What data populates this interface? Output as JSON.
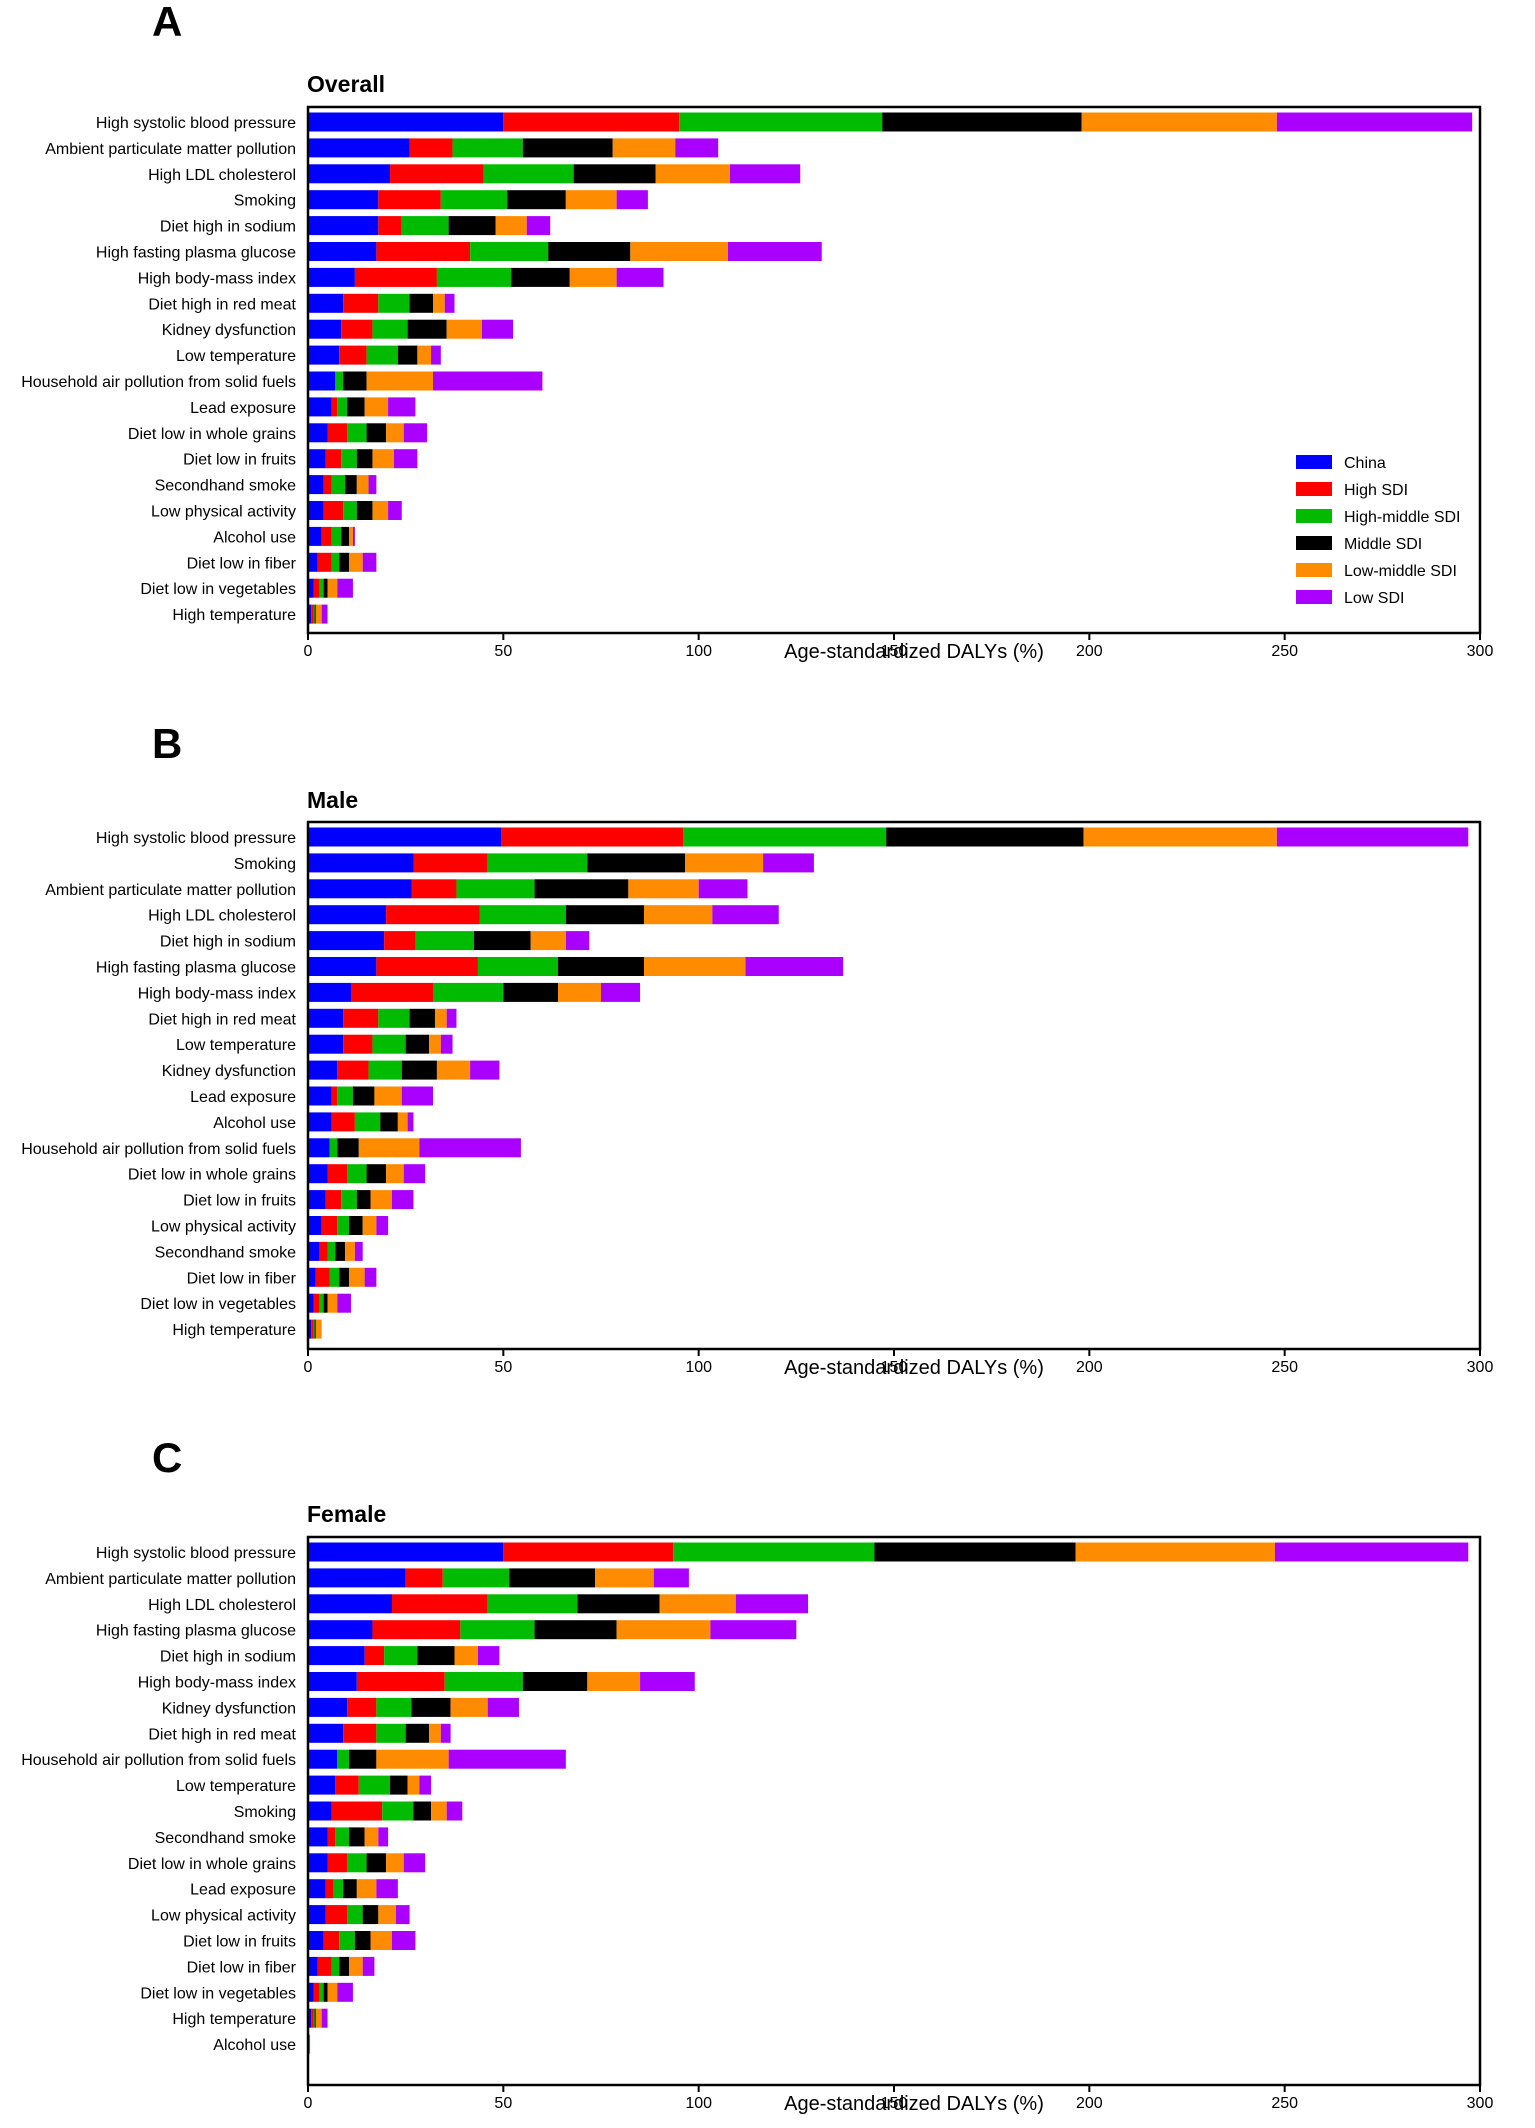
{
  "colors": {
    "China": "#0000ff",
    "High SDI": "#ff0000",
    "High-middle SDI": "#00bb00",
    "Middle SDI": "#000000",
    "Low-middle SDI": "#ff8c00",
    "Low SDI": "#aa00ff"
  },
  "legend": [
    "China",
    "High SDI",
    "High-middle SDI",
    "Middle SDI",
    "Low-middle SDI",
    "Low SDI"
  ],
  "chart_data": [
    {
      "type": "bar",
      "orientation": "horizontal",
      "stacked": true,
      "panel_letter": "A",
      "title": "Overall",
      "xlabel": "Age-standardized DALYs (%)",
      "xlim": [
        0,
        300
      ],
      "xticks": [
        0,
        50,
        100,
        150,
        200,
        250,
        300
      ],
      "legend_position": "bottom-right",
      "categories": [
        "High systolic blood pressure",
        "Ambient particulate matter pollution",
        "High LDL cholesterol",
        "Smoking",
        "Diet high in sodium",
        "High fasting plasma glucose",
        "High body-mass index",
        "Diet high in red meat",
        "Kidney dysfunction",
        "Low temperature",
        "Household air pollution from solid fuels",
        "Lead exposure",
        "Diet low in whole grains",
        "Diet low in fruits",
        "Secondhand smoke",
        "Low physical activity",
        "Alcohol use",
        "Diet low in fiber",
        "Diet low in vegetables",
        "High temperature"
      ],
      "series": [
        {
          "name": "China",
          "values": [
            50,
            26,
            21,
            18,
            18,
            17.5,
            12,
            9,
            8.5,
            8,
            7,
            6,
            5,
            4.5,
            4,
            4,
            3.5,
            2.5,
            1.5,
            0.8
          ]
        },
        {
          "name": "High SDI",
          "values": [
            45,
            11,
            24,
            16,
            6,
            24,
            21,
            9,
            8,
            7,
            0,
            1.5,
            5,
            4,
            2,
            5,
            2.5,
            3.5,
            1.5,
            0.6
          ]
        },
        {
          "name": "High-middle SDI",
          "values": [
            52,
            18,
            23,
            17,
            12,
            20,
            19,
            8,
            9,
            8,
            2,
            2.5,
            5,
            4,
            3.5,
            3.5,
            2.5,
            2,
            1,
            0.3
          ]
        },
        {
          "name": "Middle SDI",
          "values": [
            51,
            23,
            21,
            15,
            12,
            21,
            15,
            6,
            10,
            5,
            6,
            4.5,
            5,
            4,
            3,
            4,
            2,
            2.5,
            1,
            0.3
          ]
        },
        {
          "name": "Low-middle SDI",
          "values": [
            50,
            16,
            19,
            13,
            8,
            25,
            12,
            3,
            9,
            3.5,
            17,
            6,
            4.5,
            5.5,
            3,
            4,
            1,
            3.5,
            2.5,
            1.5
          ]
        },
        {
          "name": "Low SDI",
          "values": [
            50,
            11,
            18,
            8,
            6,
            24,
            12,
            2.5,
            8,
            2.5,
            28,
            7,
            6,
            6,
            2,
            3.5,
            0.5,
            3.5,
            4,
            1.5
          ]
        }
      ]
    },
    {
      "type": "bar",
      "orientation": "horizontal",
      "stacked": true,
      "panel_letter": "B",
      "title": "Male",
      "xlabel": "Age-standardized DALYs (%)",
      "xlim": [
        0,
        300
      ],
      "xticks": [
        0,
        50,
        100,
        150,
        200,
        250,
        300
      ],
      "categories": [
        "High systolic blood pressure",
        "Smoking",
        "Ambient particulate matter pollution",
        "High LDL cholesterol",
        "Diet high in sodium",
        "High fasting plasma glucose",
        "High body-mass index",
        "Diet high in red meat",
        "Low temperature",
        "Kidney dysfunction",
        "Lead exposure",
        "Alcohol use",
        "Household air pollution from solid fuels",
        "Diet low in whole grains",
        "Diet low in fruits",
        "Low physical activity",
        "Secondhand smoke",
        "Diet low in fiber",
        "Diet low in vegetables",
        "High temperature"
      ],
      "series": [
        {
          "name": "China",
          "values": [
            49.5,
            27,
            26.5,
            20,
            19.5,
            17.5,
            11,
            9,
            9,
            7.5,
            6,
            6,
            5.5,
            5,
            4.5,
            3.5,
            3,
            2,
            1.5,
            0.8
          ]
        },
        {
          "name": "High SDI",
          "values": [
            46.5,
            19,
            11.5,
            24,
            8,
            26,
            21,
            9,
            7.5,
            8,
            1.5,
            6,
            0,
            5,
            4,
            4,
            2,
            3.5,
            1.5,
            0.6
          ]
        },
        {
          "name": "High-middle SDI",
          "values": [
            52,
            25.5,
            20,
            22,
            15,
            20.5,
            18,
            8,
            8.5,
            8.5,
            4,
            6.5,
            2,
            5,
            4,
            3,
            2,
            2.5,
            1,
            0.3
          ]
        },
        {
          "name": "Middle SDI",
          "values": [
            50.5,
            25,
            24,
            20,
            14.5,
            22,
            14,
            6.5,
            6,
            9,
            5.5,
            4.5,
            5.5,
            5,
            3.5,
            3.5,
            2.5,
            2.5,
            1,
            0.3
          ]
        },
        {
          "name": "Low-middle SDI",
          "values": [
            49.5,
            20,
            18,
            17.5,
            9,
            26,
            11,
            3,
            3,
            8.5,
            7,
            2.5,
            15.5,
            4.5,
            5.5,
            3.5,
            2.5,
            4,
            2.5,
            1.5
          ]
        },
        {
          "name": "Low SDI",
          "values": [
            49,
            13,
            12.5,
            17,
            6,
            25,
            10,
            2.5,
            3,
            7.5,
            8,
            1.5,
            26,
            5.5,
            5.5,
            3,
            2,
            3,
            3.5,
            0
          ]
        }
      ]
    },
    {
      "type": "bar",
      "orientation": "horizontal",
      "stacked": true,
      "panel_letter": "C",
      "title": "Female",
      "xlabel": "Age-standardized DALYs (%)",
      "xlim": [
        0,
        300
      ],
      "xticks": [
        0,
        50,
        100,
        150,
        200,
        250,
        300
      ],
      "categories": [
        "High systolic blood pressure",
        "Ambient particulate matter pollution",
        "High LDL cholesterol",
        "High fasting plasma glucose",
        "Diet high in sodium",
        "High body-mass index",
        "Kidney dysfunction",
        "Diet high in red meat",
        "Household air pollution from solid fuels",
        "Low temperature",
        "Smoking",
        "Secondhand smoke",
        "Diet low in whole grains",
        "Lead exposure",
        "Low physical activity",
        "Diet low in fruits",
        "Diet low in fiber",
        "Diet low in vegetables",
        "High temperature",
        "Alcohol use"
      ],
      "series": [
        {
          "name": "China",
          "values": [
            50,
            25,
            21.5,
            16.5,
            14.5,
            12.5,
            10,
            9,
            7.5,
            7,
            6,
            5,
            5,
            4.5,
            4.5,
            4,
            2.5,
            1.5,
            0.8,
            0.3
          ]
        },
        {
          "name": "High SDI",
          "values": [
            43.5,
            9.5,
            24.5,
            22.5,
            5,
            22.5,
            7.5,
            8.5,
            0,
            6,
            13,
            2,
            5,
            2,
            5.5,
            4,
            3.5,
            1.5,
            0.6,
            0.1
          ]
        },
        {
          "name": "High-middle SDI",
          "values": [
            51.5,
            17,
            23,
            19,
            8.5,
            20,
            9,
            7.5,
            3,
            8,
            8,
            3.5,
            5,
            2.5,
            4,
            4,
            2,
            1,
            0.3,
            0.1
          ]
        },
        {
          "name": "Middle SDI",
          "values": [
            51.5,
            22,
            21,
            21,
            9.5,
            16.5,
            10,
            6,
            7,
            4.5,
            4.5,
            4,
            5,
            3.5,
            4,
            4,
            2.5,
            1,
            0.3,
            0
          ]
        },
        {
          "name": "Low-middle SDI",
          "values": [
            51,
            15,
            19.5,
            24,
            6,
            13.5,
            9.5,
            3,
            18.5,
            3,
            4,
            3.5,
            4.5,
            5,
            4.5,
            5.5,
            3.5,
            2.5,
            1.5,
            0
          ]
        },
        {
          "name": "Low SDI",
          "values": [
            49.5,
            9,
            18.5,
            22,
            5.5,
            14,
            8,
            2.5,
            30,
            3,
            4,
            2.5,
            5.5,
            5.5,
            3.5,
            6,
            3,
            4,
            1.5,
            0
          ]
        }
      ]
    }
  ]
}
